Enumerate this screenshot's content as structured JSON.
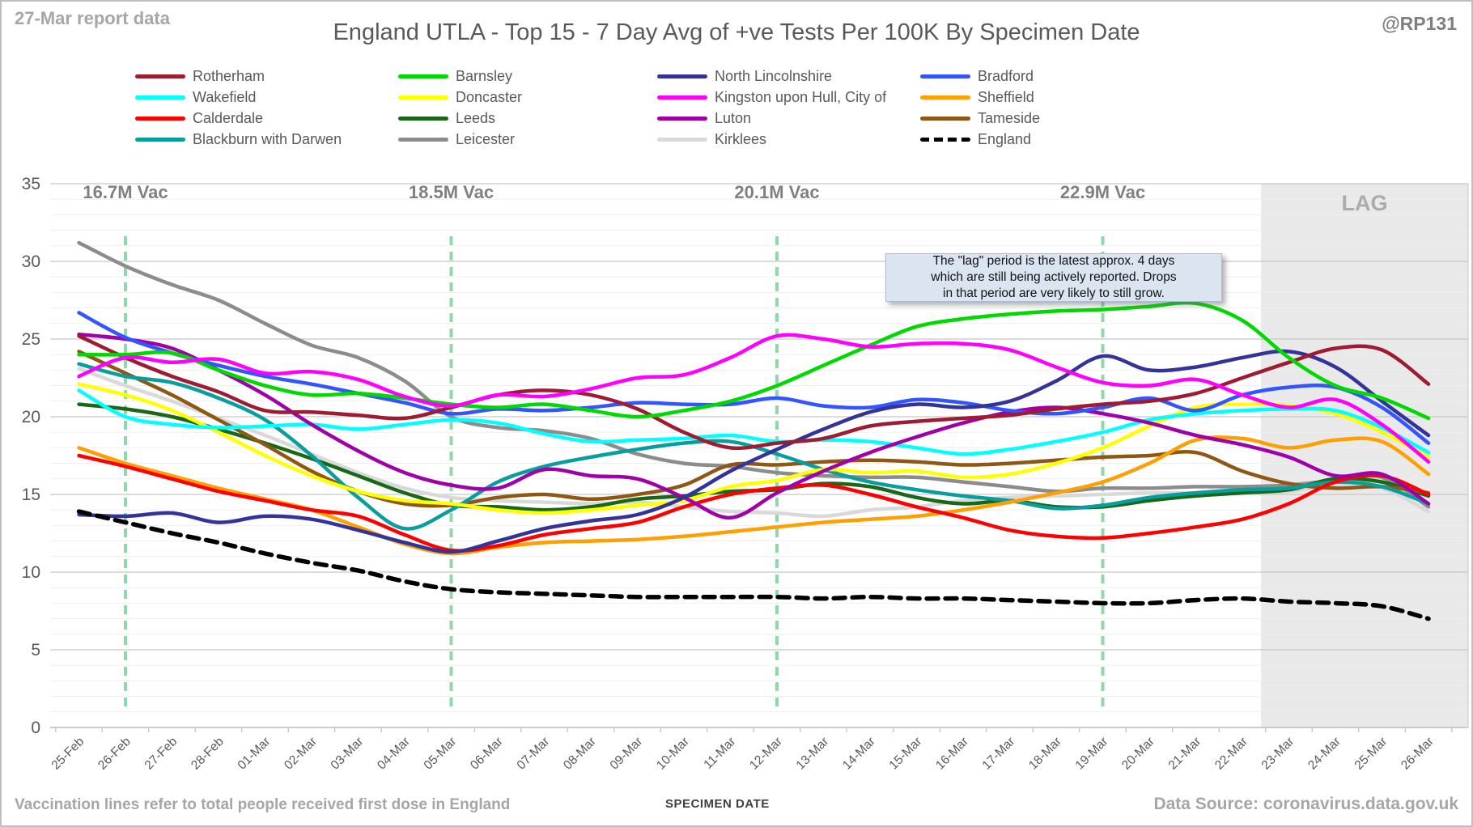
{
  "header": {
    "report_note": "27-Mar report data",
    "title": "England UTLA - Top 15 - 7 Day Avg of +ve Tests Per 100K By Specimen Date",
    "handle": "@RP131"
  },
  "footer": {
    "left_note": "Vaccination lines refer to total people received first dose in England",
    "data_source": "Data Source: coronavirus.data.gov.uk"
  },
  "annotation": {
    "lines": [
      "The \"lag\" period is the latest approx. 4 days",
      "which are still being actively reported.  Drops",
      "in that period are very likely to still grow."
    ]
  },
  "lag": {
    "label": "LAG",
    "start_index": 25.4
  },
  "vaccination_markers": [
    {
      "label": "16.7M Vac",
      "date": "26-Feb"
    },
    {
      "label": "18.5M Vac",
      "date": "05-Mar"
    },
    {
      "label": "20.1M Vac",
      "date": "12-Mar"
    },
    {
      "label": "22.9M Vac",
      "date": "19-Mar"
    }
  ],
  "colors": {
    "vac_line": "#8fd9a8",
    "lag_fill": "#e9e9e9",
    "lag_label": "#ababab",
    "grid_minor": "#efefef",
    "grid_major": "#c7c7c7",
    "axis_line": "#bfbfbf",
    "tick_label": "#595959",
    "vac_label": "#808080"
  },
  "chart_data": {
    "type": "line",
    "xlabel": "SPECIMEN DATE",
    "ylim": [
      0,
      35
    ],
    "y_major_step": 5,
    "y_minor_step": 1,
    "legend_position": "top",
    "grid": "horizontal",
    "x": [
      "25-Feb",
      "26-Feb",
      "27-Feb",
      "28-Feb",
      "01-Mar",
      "02-Mar",
      "03-Mar",
      "04-Mar",
      "05-Mar",
      "06-Mar",
      "07-Mar",
      "08-Mar",
      "09-Mar",
      "10-Mar",
      "11-Mar",
      "12-Mar",
      "13-Mar",
      "14-Mar",
      "15-Mar",
      "16-Mar",
      "17-Mar",
      "18-Mar",
      "19-Mar",
      "20-Mar",
      "21-Mar",
      "22-Mar",
      "23-Mar",
      "24-Mar",
      "25-Mar",
      "26-Mar"
    ],
    "series": [
      {
        "name": "Rotherham",
        "color": "#9e1b32",
        "values": [
          25.2,
          23.8,
          22.6,
          21.6,
          20.4,
          20.3,
          20.1,
          19.9,
          20.6,
          21.4,
          21.7,
          21.4,
          20.5,
          19.0,
          18.0,
          18.3,
          18.6,
          19.4,
          19.7,
          19.9,
          20.1,
          20.5,
          20.8,
          21.0,
          21.5,
          22.5,
          23.5,
          24.4,
          24.3,
          22.1
        ]
      },
      {
        "name": "Barnsley",
        "color": "#00d900",
        "values": [
          24.0,
          24.0,
          24.1,
          23.0,
          22.0,
          21.4,
          21.5,
          21.2,
          20.8,
          20.6,
          20.8,
          20.4,
          20.0,
          20.4,
          21.0,
          22.0,
          23.3,
          24.6,
          25.8,
          26.3,
          26.6,
          26.8,
          26.9,
          27.1,
          27.3,
          26.2,
          23.8,
          22.0,
          21.2,
          19.9
        ]
      },
      {
        "name": "North Lincolnshire",
        "color": "#333399",
        "values": [
          13.7,
          13.6,
          13.8,
          13.2,
          13.6,
          13.4,
          12.7,
          11.9,
          11.3,
          12.0,
          12.8,
          13.3,
          13.7,
          14.8,
          16.5,
          17.9,
          19.2,
          20.3,
          20.8,
          20.6,
          21.0,
          22.3,
          23.9,
          23.0,
          23.2,
          23.8,
          24.2,
          23.2,
          21.0,
          18.8
        ]
      },
      {
        "name": "Bradford",
        "color": "#3355ff",
        "values": [
          26.7,
          25.1,
          24.1,
          23.3,
          22.6,
          22.1,
          21.5,
          20.9,
          20.2,
          20.5,
          20.4,
          20.6,
          20.9,
          20.8,
          20.8,
          21.2,
          20.7,
          20.6,
          21.1,
          20.9,
          20.4,
          20.2,
          20.6,
          21.2,
          20.4,
          21.4,
          21.9,
          21.9,
          20.6,
          18.3
        ]
      },
      {
        "name": "Wakefield",
        "color": "#00ffff",
        "values": [
          21.7,
          20.0,
          19.5,
          19.3,
          19.4,
          19.5,
          19.2,
          19.5,
          19.8,
          19.6,
          18.9,
          18.4,
          18.5,
          18.6,
          18.8,
          18.4,
          18.5,
          18.4,
          18.0,
          17.6,
          17.9,
          18.4,
          19.0,
          19.8,
          20.2,
          20.4,
          20.5,
          20.4,
          19.3,
          17.7
        ]
      },
      {
        "name": "Doncaster",
        "color": "#ffff00",
        "values": [
          22.1,
          21.4,
          20.4,
          19.0,
          17.5,
          16.2,
          15.2,
          14.6,
          14.4,
          14.0,
          13.8,
          14.0,
          14.3,
          14.6,
          15.5,
          15.9,
          16.6,
          16.4,
          16.5,
          16.1,
          16.3,
          17.0,
          18.0,
          19.4,
          20.6,
          20.8,
          20.7,
          20.2,
          19.0,
          17.4
        ]
      },
      {
        "name": "Kingston upon Hull, City of",
        "color": "#ff00ff",
        "values": [
          22.6,
          23.8,
          23.5,
          23.7,
          22.8,
          22.9,
          22.4,
          21.3,
          20.7,
          21.4,
          21.3,
          21.8,
          22.5,
          22.7,
          23.8,
          25.2,
          25.0,
          24.5,
          24.7,
          24.7,
          24.3,
          23.2,
          22.2,
          22.0,
          22.4,
          21.4,
          20.6,
          21.1,
          19.5,
          17.1
        ]
      },
      {
        "name": "Sheffield",
        "color": "#ff9f00",
        "values": [
          18.0,
          17.0,
          16.2,
          15.4,
          14.7,
          14.0,
          12.9,
          11.8,
          11.2,
          11.6,
          11.9,
          12.0,
          12.1,
          12.3,
          12.6,
          12.9,
          13.2,
          13.4,
          13.6,
          14.0,
          14.5,
          15.1,
          15.8,
          17.0,
          18.5,
          18.6,
          18.0,
          18.5,
          18.4,
          16.3
        ]
      },
      {
        "name": "Calderdale",
        "color": "#ff0000",
        "values": [
          17.5,
          16.8,
          16.0,
          15.2,
          14.6,
          14.0,
          13.6,
          12.4,
          11.4,
          11.7,
          12.4,
          12.8,
          13.2,
          14.2,
          15.0,
          15.4,
          15.6,
          15.0,
          14.2,
          13.5,
          12.7,
          12.3,
          12.2,
          12.5,
          12.9,
          13.4,
          14.4,
          15.8,
          16.2,
          15.0
        ]
      },
      {
        "name": "Leeds",
        "color": "#186818",
        "values": [
          20.8,
          20.5,
          20.0,
          19.2,
          18.3,
          17.3,
          16.2,
          15.1,
          14.3,
          14.2,
          14.0,
          14.2,
          14.7,
          14.9,
          15.2,
          15.3,
          15.7,
          15.5,
          14.8,
          14.4,
          14.6,
          14.2,
          14.2,
          14.6,
          14.9,
          15.1,
          15.3,
          16.0,
          15.8,
          14.9
        ]
      },
      {
        "name": "Luton",
        "color": "#a000a8",
        "values": [
          25.3,
          25.0,
          24.4,
          23.0,
          21.4,
          19.5,
          17.8,
          16.4,
          15.6,
          15.4,
          16.6,
          16.2,
          16.0,
          14.8,
          13.5,
          15.1,
          16.5,
          17.7,
          18.7,
          19.6,
          20.3,
          20.6,
          20.2,
          19.6,
          18.8,
          18.2,
          17.4,
          16.2,
          16.3,
          14.4
        ]
      },
      {
        "name": "Tameside",
        "color": "#8f5713",
        "values": [
          24.2,
          22.8,
          21.4,
          19.8,
          18.2,
          16.5,
          15.2,
          14.4,
          14.3,
          14.8,
          15.0,
          14.7,
          15.0,
          15.6,
          16.9,
          16.9,
          17.1,
          17.2,
          17.1,
          16.9,
          17.0,
          17.2,
          17.4,
          17.5,
          17.7,
          16.5,
          15.7,
          15.4,
          15.5,
          15.1
        ]
      },
      {
        "name": "Blackburn with Darwen",
        "color": "#089e9e",
        "values": [
          23.4,
          22.6,
          22.2,
          21.2,
          19.8,
          17.5,
          14.8,
          12.8,
          14.0,
          15.8,
          16.8,
          17.4,
          17.9,
          18.3,
          18.4,
          17.6,
          16.6,
          15.8,
          15.3,
          14.9,
          14.6,
          14.1,
          14.3,
          14.8,
          15.1,
          15.3,
          15.4,
          15.8,
          15.5,
          14.4
        ]
      },
      {
        "name": "Leicester",
        "color": "#8c8c8c",
        "values": [
          31.2,
          29.7,
          28.5,
          27.5,
          26.0,
          24.6,
          23.8,
          22.3,
          20.0,
          19.3,
          19.1,
          18.6,
          17.6,
          17.0,
          16.8,
          16.4,
          16.2,
          16.1,
          16.1,
          15.8,
          15.5,
          15.2,
          15.4,
          15.4,
          15.5,
          15.5,
          15.6,
          15.9,
          16.1,
          14.2
        ]
      },
      {
        "name": "Kirklees",
        "color": "#d9d9d9",
        "values": [
          23.1,
          22.0,
          21.0,
          19.9,
          18.8,
          17.6,
          16.4,
          15.4,
          14.8,
          14.6,
          14.5,
          14.4,
          14.5,
          14.2,
          13.9,
          13.8,
          13.6,
          14.0,
          14.2,
          14.6,
          14.8,
          14.9,
          15.0,
          15.1,
          15.1,
          15.1,
          15.2,
          15.6,
          15.4,
          13.9
        ]
      },
      {
        "name": "England",
        "color": "#000000",
        "dashed": true,
        "values": [
          13.9,
          13.2,
          12.5,
          11.9,
          11.2,
          10.6,
          10.1,
          9.4,
          8.9,
          8.7,
          8.6,
          8.5,
          8.4,
          8.4,
          8.4,
          8.4,
          8.3,
          8.4,
          8.3,
          8.3,
          8.2,
          8.1,
          8.0,
          8.0,
          8.2,
          8.3,
          8.1,
          8.0,
          7.8,
          7.0
        ]
      }
    ],
    "draw_order": [
      "Kirklees",
      "Leicester",
      "Leeds",
      "Tameside",
      "Blackburn with Darwen",
      "Sheffield",
      "Calderdale",
      "Doncaster",
      "Wakefield",
      "Luton",
      "Bradford",
      "North Lincolnshire",
      "Rotherham",
      "Barnsley",
      "Kingston upon Hull, City of",
      "England"
    ]
  }
}
